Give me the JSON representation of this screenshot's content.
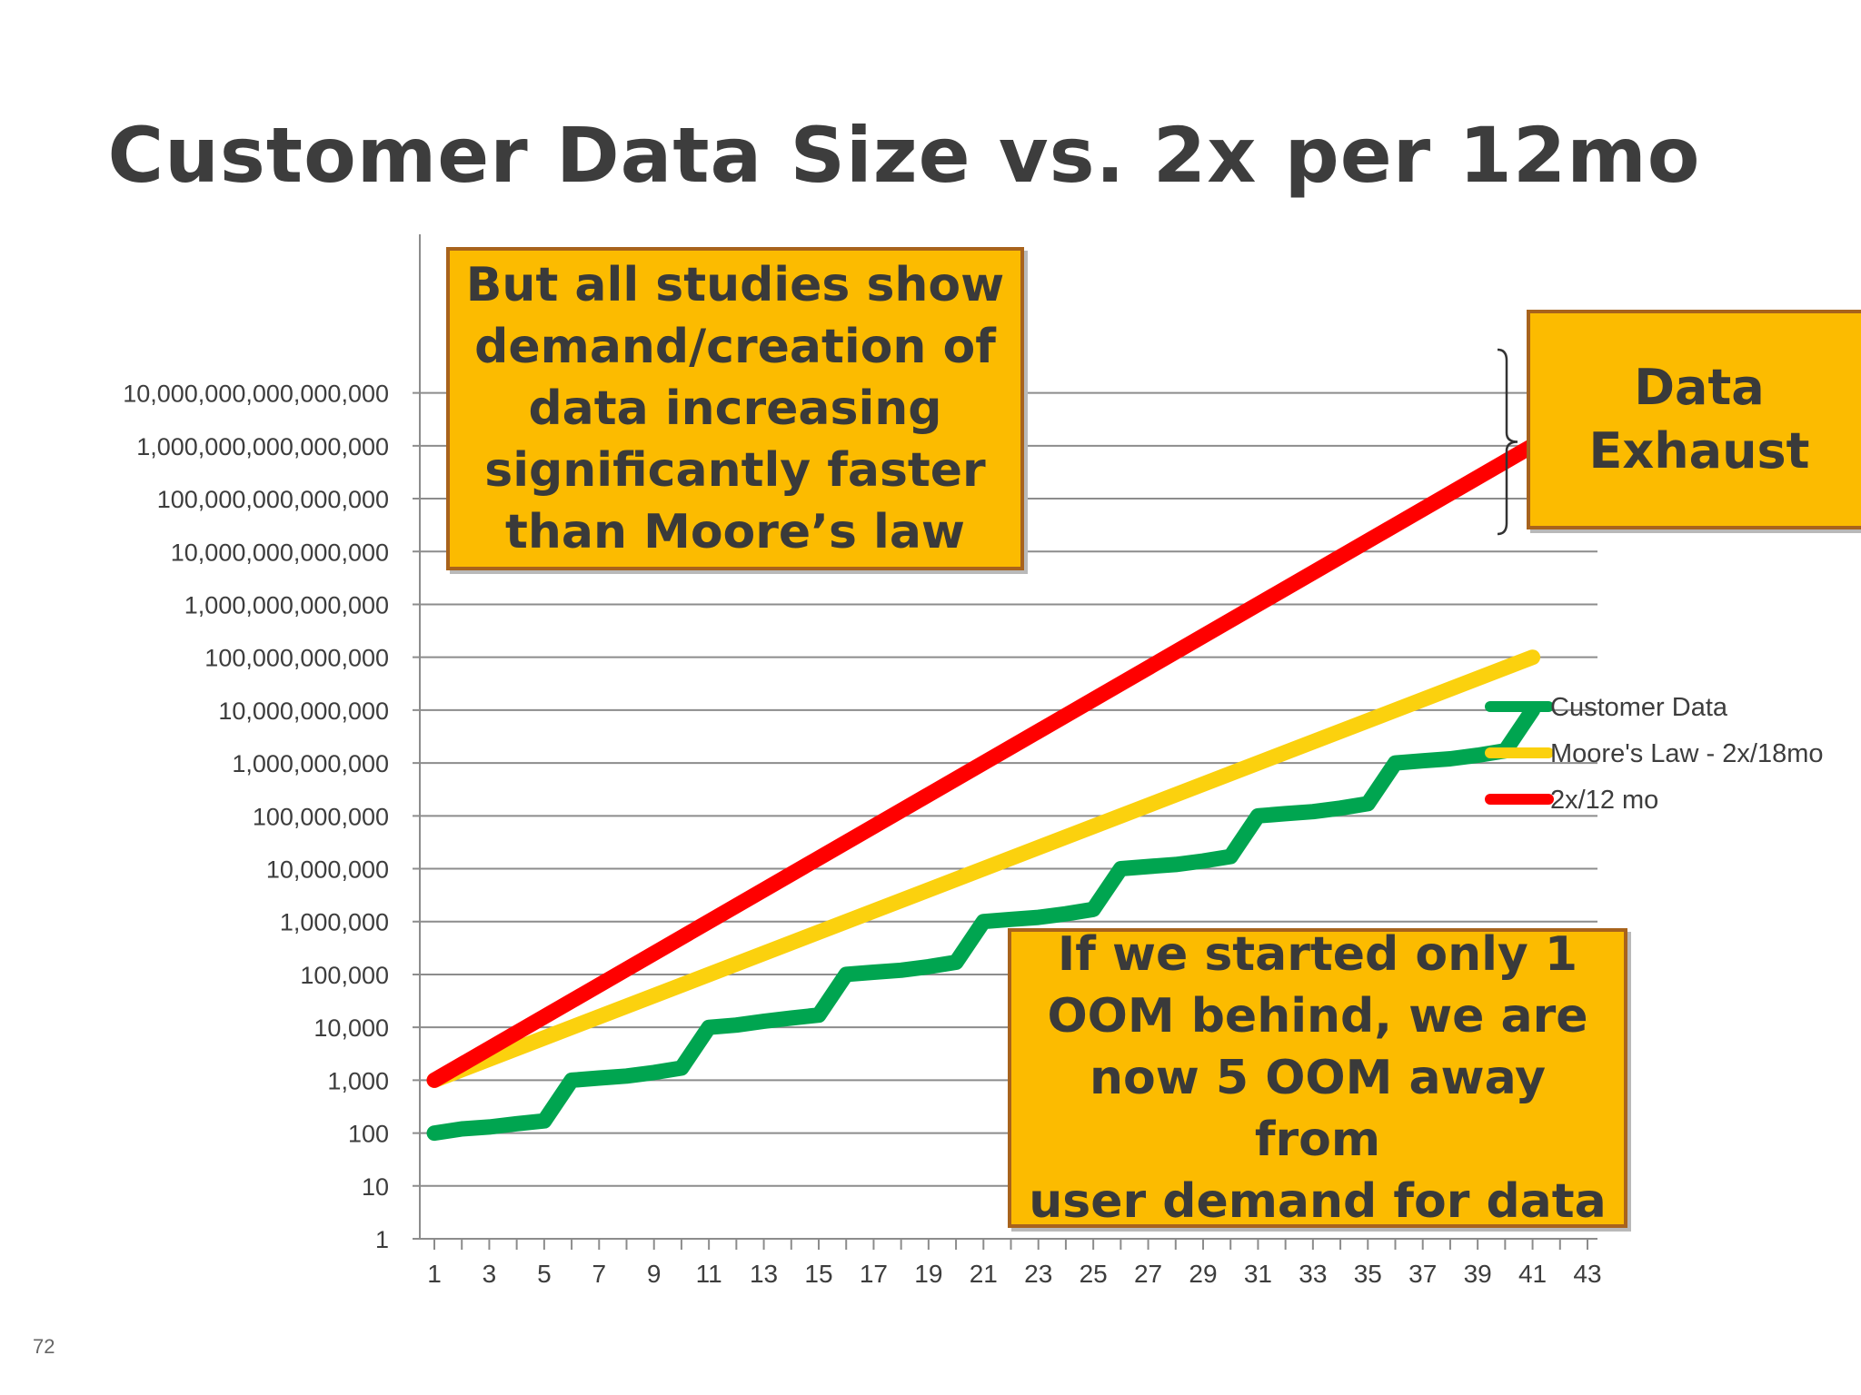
{
  "slide": {
    "title": "Customer Data Size vs. 2x per 12mo",
    "page_number": "72",
    "callouts": {
      "top": "But all studies show\ndemand/creation of\ndata increasing\nsignificantly faster\nthan Moore’s law",
      "exhaust": "Data\nExhaust",
      "bottom": "If we started only 1\nOOM behind, we are\nnow 5 OOM away from\nuser demand for data"
    }
  },
  "colors": {
    "customer": "#00a550",
    "moore": "#fbd10e",
    "twelve": "#ff0000",
    "callout_fill": "#fcbb00",
    "callout_border": "#a8631c",
    "grid": "#8c8c8c",
    "text": "#3d3d3d"
  },
  "chart_data": {
    "type": "line",
    "title": "Customer Data Size vs. 2x per 12mo",
    "x_scale": "linear",
    "y_scale": "log10",
    "xlim": [
      1,
      43
    ],
    "ylim": [
      1,
      10000000000000000000
    ],
    "x_ticks": [
      1,
      3,
      5,
      7,
      9,
      11,
      13,
      15,
      17,
      19,
      21,
      23,
      25,
      27,
      29,
      31,
      33,
      35,
      37,
      39,
      41,
      43
    ],
    "x_tick_labels": [
      "1",
      "3",
      "5",
      "7",
      "9",
      "11",
      "13",
      "15",
      "17",
      "19",
      "21",
      "23",
      "25",
      "27",
      "29",
      "31",
      "33",
      "35",
      "37",
      "39",
      "41",
      "43"
    ],
    "y_tick_labels": [
      "1",
      "10",
      "100",
      "1,000",
      "10,000",
      "100,000",
      "1,000,000",
      "10,000,000",
      "100,000,000",
      "1,000,000,000",
      "10,000,000,000",
      "100,000,000,000",
      "1,000,000,000,000",
      "10,000,000,000,000",
      "100,000,000,000,000",
      "1,000,000,000,000,000",
      "10,000,000,000,000,000"
    ],
    "legend_position": "right",
    "annotation": "brace between 2x/12 mo and Moore's Law at x=41",
    "series": [
      {
        "name": "Customer Data",
        "color": "#00a550",
        "x": [
          1,
          2,
          3,
          4,
          5,
          6,
          7,
          8,
          9,
          10,
          11,
          12,
          13,
          14,
          15,
          16,
          17,
          18,
          19,
          20,
          21,
          22,
          23,
          24,
          25,
          26,
          27,
          28,
          29,
          30,
          31,
          32,
          33,
          34,
          35,
          36,
          37,
          38,
          39,
          40,
          41
        ],
        "values": [
          100,
          120,
          130,
          150,
          170,
          1000,
          1100,
          1200,
          1400,
          1700,
          10000,
          11000,
          13000,
          15000,
          17000,
          100000,
          110000,
          120000,
          140000,
          170000,
          1000000,
          1100000,
          1200000,
          1400000,
          1700000,
          10000000,
          11000000,
          12000000,
          14000000,
          17000000,
          100000000,
          110000000,
          120000000,
          140000000,
          170000000,
          1000000000,
          1100000000,
          1200000000,
          1400000000,
          1700000000,
          10000000000
        ]
      },
      {
        "name": "Moore's Law - 2x/18mo",
        "color": "#fbd10e",
        "x": [
          1,
          41
        ],
        "values": [
          1000,
          100000000000
        ]
      },
      {
        "name": "2x/12 mo",
        "color": "#ff0000",
        "x": [
          1,
          41
        ],
        "values": [
          1000,
          1000000000000000
        ]
      }
    ]
  }
}
